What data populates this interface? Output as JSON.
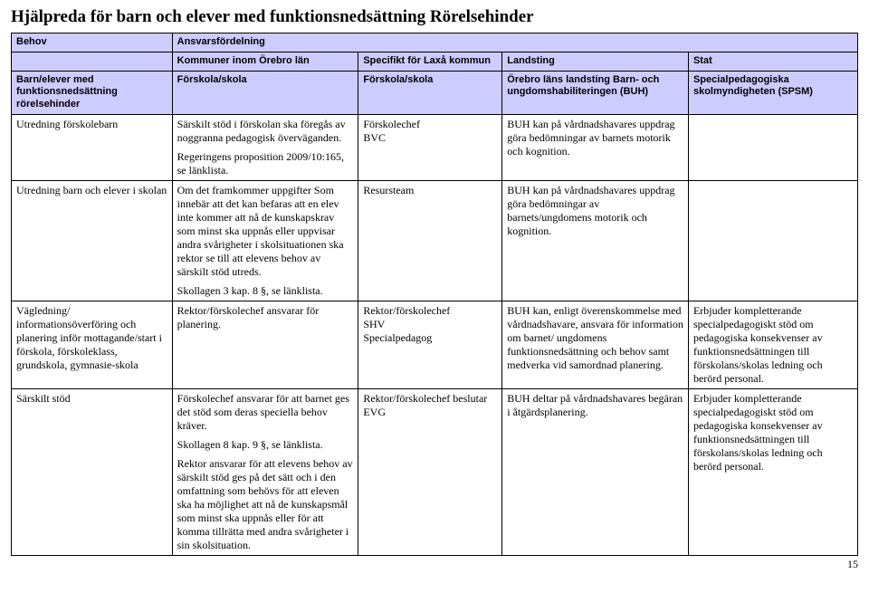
{
  "title": "Hjälpreda för barn och elever med funktionsnedsättning Rörelsehinder",
  "page_number": "15",
  "header1": {
    "c1": "Behov",
    "c2": "Ansvarsfördelning"
  },
  "header2": {
    "c2": "Kommuner inom Örebro län",
    "c3": "Specifikt för Laxå kommun",
    "c4": "Landsting",
    "c5": "Stat"
  },
  "header3": {
    "c1": "Barn/elever med funktionsnedsättning rörelsehinder",
    "c2": "Förskola/skola",
    "c3": "Förskola/skola",
    "c4": "Örebro läns landsting Barn- och ungdomshabiliteringen (BUH)",
    "c5": "Specialpedagogiska skolmyndigheten (SPSM)"
  },
  "rows": [
    {
      "c1": "Utredning förskolebarn",
      "c2a": "Särskilt stöd i förskolan ska föregås av noggranna pedagogisk överväganden.",
      "c2b": "Regeringens proposition 2009/10:165, se länklista.",
      "c3a": "Förskolechef",
      "c3b": "BVC",
      "c4": "BUH kan på vårdnadshavares uppdrag göra bedömningar av barnets motorik och kognition.",
      "c5": ""
    },
    {
      "c1": "Utredning barn och elever i skolan",
      "c2a": "Om det framkommer uppgifter Som innebär att det kan befaras att en elev inte kommer att nå de kunskapskrav som minst ska uppnås eller uppvisar andra svårigheter i skolsituationen ska rektor se till att elevens behov av särskilt stöd utreds.",
      "c2b": "Skollagen 3 kap. 8 §, se länklista.",
      "c3": "Resursteam",
      "c4": "BUH kan på vårdnadshavares uppdrag göra bedömningar av barnets/ungdomens motorik och kognition.",
      "c5": ""
    },
    {
      "c1": "Vägledning/ informationsöverföring och planering inför mottagande/start i förskola, förskoleklass, grundskola, gymnasie-skola",
      "c2": "Rektor/förskolechef ansvarar för planering.",
      "c3a": "Rektor/förskolechef",
      "c3b": "SHV",
      "c3c": "Specialpedagog",
      "c4": "BUH kan, enligt överenskommelse med vårdnadshavare, ansvara för information om barnet/ ungdomens funktionsnedsättning och behov samt medverka vid samordnad planering.",
      "c5": "Erbjuder kompletterande specialpedagogiskt stöd om pedagogiska konsekvenser av funktionsnedsättningen till förskolans/skolas ledning och berörd personal."
    },
    {
      "c1": "Särskilt stöd",
      "c2a": "Förskolechef ansvarar för att barnet ges det stöd som deras speciella behov kräver.",
      "c2b": "Skollagen 8 kap. 9 §, se länklista.",
      "c2c": "Rektor ansvarar för att elevens behov av särskilt stöd ges på det sätt och i den omfattning som behövs för att eleven ska ha möjlighet att nå de kunskapsmål som minst ska uppnås eller för att komma tillrätta med andra svårigheter i sin skolsituation.",
      "c3a": "Rektor/förskolechef beslutar",
      "c3b": "EVG",
      "c4": "BUH deltar på vårdnadshavares begäran i åtgärdsplanering.",
      "c5": "Erbjuder kompletterande specialpedagogiskt stöd om pedagogiska konsekvenser av funktionsnedsättningen till förskolans/skolas ledning och berörd personal."
    }
  ]
}
